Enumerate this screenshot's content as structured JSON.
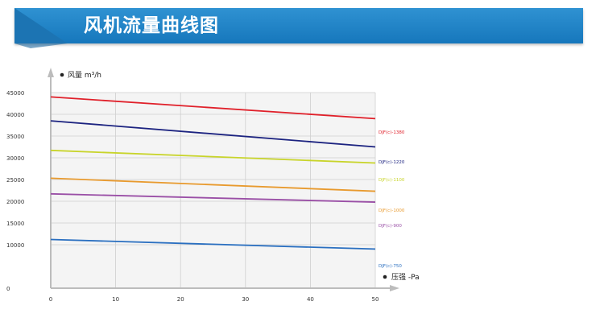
{
  "header": {
    "title": "风机流量曲线图",
    "accent": "#1a7dc4"
  },
  "chart_data": {
    "type": "line",
    "ylabel": "风量 m³/h",
    "xlabel": "压强 -Pa",
    "xlim": [
      0,
      50
    ],
    "ylim": [
      0,
      45000
    ],
    "x_ticks": [
      "0",
      "10",
      "20",
      "30",
      "40",
      "50"
    ],
    "y_ticks": [
      "0",
      "10000",
      "15000",
      "20000",
      "25000",
      "30000",
      "35000",
      "40000",
      "45000"
    ],
    "grid": true,
    "series": [
      {
        "name": "DJF(c)-1380",
        "color": "#e0202a",
        "x": [
          0,
          50
        ],
        "y": [
          44000,
          39000
        ]
      },
      {
        "name": "DJF(c)-1220",
        "color": "#1c2380",
        "x": [
          0,
          50
        ],
        "y": [
          38500,
          32500
        ]
      },
      {
        "name": "DJF(c)-1100",
        "color": "#c8d42a",
        "x": [
          0,
          50
        ],
        "y": [
          31700,
          28800
        ]
      },
      {
        "name": "DJF(c)-1000",
        "color": "#e89a2e",
        "x": [
          0,
          50
        ],
        "y": [
          25300,
          22300
        ]
      },
      {
        "name": "DJF(c)-900",
        "color": "#9a4fa6",
        "x": [
          0,
          50
        ],
        "y": [
          21700,
          19800
        ]
      },
      {
        "name": "DJF(c)-750",
        "color": "#2a6fc0",
        "x": [
          0,
          50
        ],
        "y": [
          11200,
          9000
        ]
      }
    ]
  }
}
